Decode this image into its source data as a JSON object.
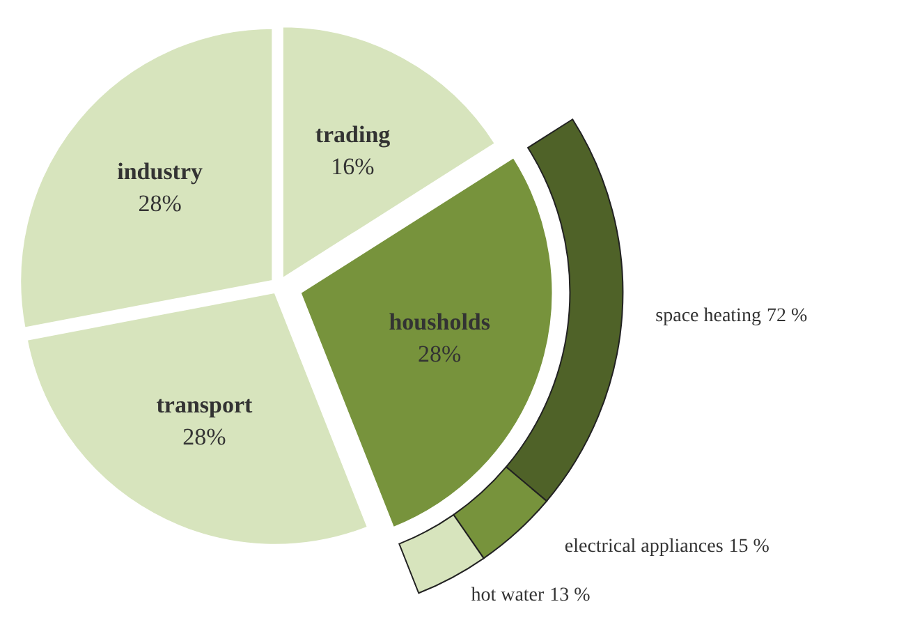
{
  "chart_data": [
    {
      "type": "pie",
      "categories": [
        "trading",
        "housholds",
        "transport",
        "industry"
      ],
      "values": [
        16,
        28,
        28,
        28
      ],
      "value_labels": [
        "16%",
        "28%",
        "28%",
        "28%"
      ],
      "colors": [
        "#d7e4bd",
        "#77933c",
        "#d7e4bd",
        "#d7e4bd"
      ]
    },
    {
      "type": "other",
      "categories": [
        "space heating",
        "electrical appliances",
        "hot water"
      ],
      "values": [
        72,
        15,
        13
      ],
      "value_labels": [
        "72 %",
        "15 %",
        "13 %"
      ],
      "colors": [
        "#4f6228",
        "#77933c",
        "#d7e4bd"
      ]
    }
  ]
}
